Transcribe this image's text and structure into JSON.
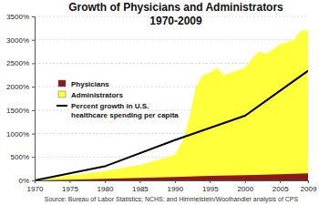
{
  "chart_data": {
    "type": "area",
    "title": "Growth of Physicians and Administrators",
    "subtitle": "1970-2009",
    "source": "Source: Bureau of Labor Statistics; NCHS; and Himmelstein/Woolhandler analysis of CPS",
    "xlim": [
      1970,
      2009
    ],
    "xticks": [
      1970,
      1975,
      1980,
      1985,
      1990,
      1995,
      2000,
      2005,
      2009
    ],
    "ylim": [
      0,
      3500
    ],
    "yticks": [
      {
        "value": 0,
        "label": "0%"
      },
      {
        "value": 500,
        "label": "500%"
      },
      {
        "value": 1000,
        "label": "1000%"
      },
      {
        "value": 1500,
        "label": "1500%"
      },
      {
        "value": 2000,
        "label": "2000%"
      },
      {
        "value": 2500,
        "label": "2500%"
      },
      {
        "value": 3000,
        "label": "3000%"
      },
      {
        "value": 3500,
        "label": "3500%"
      }
    ],
    "grid": true,
    "legend": "upper left",
    "series": [
      {
        "name": "Physicians",
        "type": "area",
        "color": "#8b1a1a",
        "x": [
          1970,
          1975,
          1980,
          1985,
          1990,
          1995,
          2000,
          2005,
          2009
        ],
        "values": [
          0,
          15,
          35,
          55,
          75,
          95,
          110,
          130,
          150
        ]
      },
      {
        "name": "Administrators",
        "type": "area",
        "color": "#ffff3c",
        "x": [
          1970,
          1975,
          1980,
          1985,
          1988,
          1990,
          1991,
          1992,
          1993,
          1994,
          1995,
          1996,
          1997,
          1998,
          1999,
          2000,
          2001,
          2002,
          2003,
          2004,
          2005,
          2006,
          2007,
          2008,
          2009
        ],
        "values": [
          0,
          100,
          200,
          330,
          450,
          550,
          800,
          1300,
          2000,
          2250,
          2300,
          2400,
          2250,
          2300,
          2350,
          2400,
          2600,
          2750,
          2700,
          2800,
          2900,
          2950,
          3000,
          3200,
          3200
        ]
      },
      {
        "name": "Percent growth in U.S. healthcare spending per capita",
        "type": "line",
        "color": "#000000",
        "x": [
          1970,
          1980,
          1990,
          2000,
          2009
        ],
        "values": [
          0,
          300,
          860,
          1380,
          2340
        ]
      }
    ]
  }
}
